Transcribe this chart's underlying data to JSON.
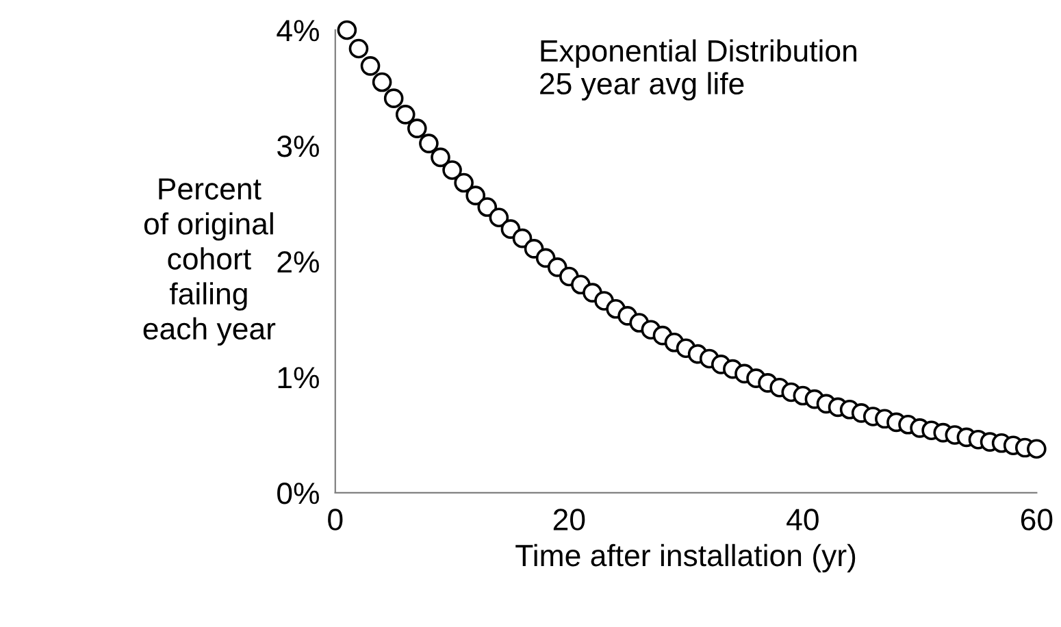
{
  "chart_data": {
    "type": "scatter",
    "ylabel": "Percent\nof original\ncohort\nfailing\neach year",
    "xlabel": "Time after installation (yr)",
    "annotations": [
      "Exponential Distribution\n25 year avg life"
    ],
    "x": [
      1,
      2,
      3,
      4,
      5,
      6,
      7,
      8,
      9,
      10,
      11,
      12,
      13,
      14,
      15,
      16,
      17,
      18,
      19,
      20,
      21,
      22,
      23,
      24,
      25,
      26,
      27,
      28,
      29,
      30,
      31,
      32,
      33,
      34,
      35,
      36,
      37,
      38,
      39,
      40,
      41,
      42,
      43,
      44,
      45,
      46,
      47,
      48,
      49,
      50,
      51,
      52,
      53,
      54,
      55,
      56,
      57,
      58,
      59,
      60
    ],
    "series": [
      {
        "color": "#000000",
        "values": [
          4.0,
          3.84,
          3.69,
          3.55,
          3.41,
          3.27,
          3.15,
          3.02,
          2.9,
          2.79,
          2.68,
          2.57,
          2.47,
          2.38,
          2.28,
          2.2,
          2.11,
          2.03,
          1.95,
          1.87,
          1.8,
          1.73,
          1.66,
          1.59,
          1.53,
          1.47,
          1.41,
          1.36,
          1.3,
          1.25,
          1.2,
          1.16,
          1.11,
          1.07,
          1.03,
          0.99,
          0.95,
          0.91,
          0.87,
          0.84,
          0.81,
          0.77,
          0.74,
          0.72,
          0.69,
          0.66,
          0.64,
          0.61,
          0.59,
          0.56,
          0.54,
          0.52,
          0.5,
          0.48,
          0.46,
          0.44,
          0.43,
          0.41,
          0.39,
          0.38
        ]
      }
    ],
    "xlim": [
      0,
      60
    ],
    "xticks": [
      0,
      20,
      40,
      60
    ],
    "ylim": [
      0,
      4
    ],
    "yticks": [
      {
        "value": 0,
        "label": "0%"
      },
      {
        "value": 1,
        "label": "1%"
      },
      {
        "value": 2,
        "label": "2%"
      },
      {
        "value": 3,
        "label": "3%"
      },
      {
        "value": 4,
        "label": "4%"
      }
    ],
    "marker": "circle",
    "grid": false,
    "legend": false
  }
}
